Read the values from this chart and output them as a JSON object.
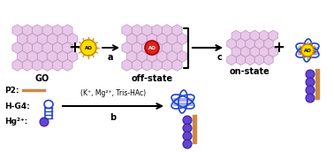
{
  "bg_color": "#ffffff",
  "go_color": "#e8c8e8",
  "go_border": "#c090c0",
  "ao_dye_color": "#ffdd00",
  "ao_dye_border": "#cc8800",
  "ao_adsorbed_color": "#dd2222",
  "ao_adsorbed_border": "#aa0000",
  "p2_color": "#cc8844",
  "hg_color": "#6644cc",
  "hg_border": "#3322aa",
  "dna_color": "#2244cc",
  "arrow_color": "#000000",
  "bracket_color": "#000000",
  "label_go": "GO",
  "label_off": "off-state",
  "label_on": "on-state",
  "label_p2": "P2:",
  "label_hg4": "H-G4:",
  "label_hg2": "Hg²⁺:",
  "label_a": "a",
  "label_b": "b",
  "label_c": "c",
  "label_cation": "(K⁺, Mg²⁺, Tris-HAc)"
}
